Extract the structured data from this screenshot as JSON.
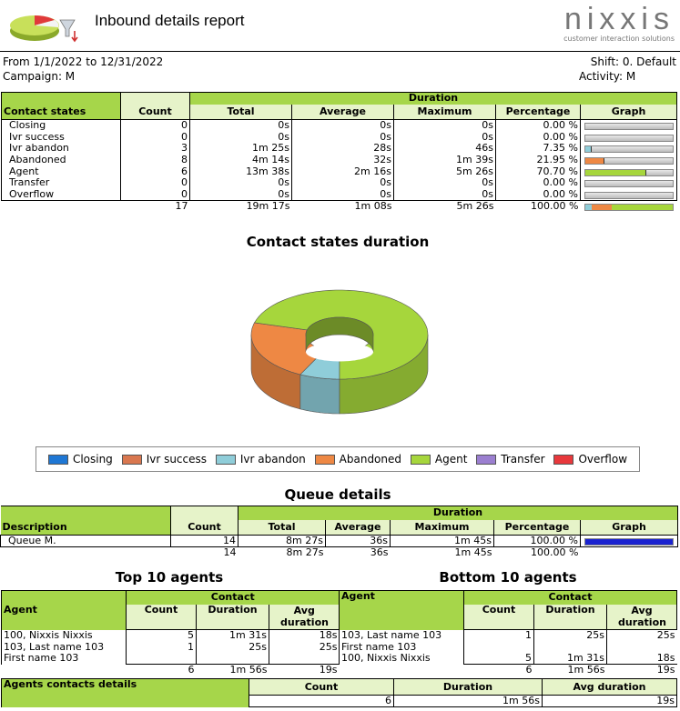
{
  "header": {
    "title": "Inbound details report",
    "logo_text": "nixxis",
    "logo_tagline": "customer interaction solutions"
  },
  "meta": {
    "period": "From  1/1/2022 to 12/31/2022",
    "campaign": "Campaign: M",
    "shift": "Shift: 0. Default",
    "activity": "Activity: M"
  },
  "contact_states": {
    "title": "Contact states",
    "group_label": "Duration",
    "columns": [
      "Count",
      "Total",
      "Average",
      "Maximum",
      "Percentage",
      "Graph"
    ],
    "rows": [
      {
        "name": "Closing",
        "count": "0",
        "total": "0s",
        "average": "0s",
        "maximum": "0s",
        "percentage": "0.00 %",
        "pct": 0
      },
      {
        "name": "Ivr success",
        "count": "0",
        "total": "0s",
        "average": "0s",
        "maximum": "0s",
        "percentage": "0.00 %",
        "pct": 0
      },
      {
        "name": "Ivr abandon",
        "count": "3",
        "total": "1m 25s",
        "average": "28s",
        "maximum": "46s",
        "percentage": "7.35 %",
        "pct": 7.35
      },
      {
        "name": "Abandoned",
        "count": "8",
        "total": "4m 14s",
        "average": "32s",
        "maximum": "1m 39s",
        "percentage": "21.95 %",
        "pct": 21.95
      },
      {
        "name": "Agent",
        "count": "6",
        "total": "13m 38s",
        "average": "2m 16s",
        "maximum": "5m 26s",
        "percentage": "70.70 %",
        "pct": 70.7
      },
      {
        "name": "Transfer",
        "count": "0",
        "total": "0s",
        "average": "0s",
        "maximum": "0s",
        "percentage": "0.00 %",
        "pct": 0
      },
      {
        "name": "Overflow",
        "count": "0",
        "total": "0s",
        "average": "0s",
        "maximum": "0s",
        "percentage": "0.00 %",
        "pct": 0
      }
    ],
    "totals": {
      "count": "17",
      "total": "19m 17s",
      "average": "1m 08s",
      "maximum": "5m 26s",
      "percentage": "100.00 %"
    }
  },
  "chart_data": {
    "type": "pie",
    "title": "Contact states duration",
    "categories": [
      "Closing",
      "Ivr success",
      "Ivr abandon",
      "Abandoned",
      "Agent",
      "Transfer",
      "Overflow"
    ],
    "values": [
      0,
      0,
      7.35,
      21.95,
      70.7,
      0,
      0
    ],
    "colors": [
      "#1f77d4",
      "#d9774f",
      "#8fcdd9",
      "#ee8844",
      "#a6d63c",
      "#9b7fd0",
      "#e8383c"
    ],
    "legend_position": "bottom",
    "style": "3d-donut"
  },
  "queue": {
    "title": "Queue details",
    "desc_label": "Description",
    "group_label": "Duration",
    "columns": [
      "Count",
      "Total",
      "Average",
      "Maximum",
      "Percentage",
      "Graph"
    ],
    "rows": [
      {
        "name": "Queue M.",
        "count": "14",
        "total": "8m 27s",
        "average": "36s",
        "maximum": "1m 45s",
        "percentage": "100.00 %",
        "pct": 100
      }
    ],
    "totals": {
      "count": "14",
      "total": "8m 27s",
      "average": "36s",
      "maximum": "1m 45s",
      "percentage": "100.00 %"
    }
  },
  "top_agents": {
    "title": "Top 10 agents",
    "agent_label": "Agent",
    "group_label": "Contact",
    "columns": [
      "Count",
      "Duration",
      "Avg duration"
    ],
    "rows": [
      {
        "name": "100, Nixxis Nixxis",
        "count": "5",
        "duration": "1m 31s",
        "avg": "18s"
      },
      {
        "name": "103, Last name 103",
        "count": "1",
        "duration": "25s",
        "avg": "25s"
      },
      {
        "name": "First name 103",
        "count": "",
        "duration": "",
        "avg": ""
      }
    ],
    "totals": {
      "count": "6",
      "duration": "1m 56s",
      "avg": "19s"
    }
  },
  "bottom_agents": {
    "title": "Bottom 10 agents",
    "agent_label": "Agent",
    "group_label": "Contact",
    "columns": [
      "Count",
      "Duration",
      "Avg duration"
    ],
    "rows": [
      {
        "name": "103, Last name 103",
        "count": "1",
        "duration": "25s",
        "avg": "25s"
      },
      {
        "name": "First name 103",
        "count": "",
        "duration": "",
        "avg": ""
      },
      {
        "name": "100, Nixxis Nixxis",
        "count": "5",
        "duration": "1m 31s",
        "avg": "18s"
      }
    ],
    "totals": {
      "count": "6",
      "duration": "1m 56s",
      "avg": "19s"
    }
  },
  "agents_contacts": {
    "title": "Agents contacts details",
    "columns": [
      "Count",
      "Duration",
      "Avg duration"
    ],
    "totals": {
      "count": "6",
      "duration": "1m 56s",
      "avg": "19s"
    }
  }
}
